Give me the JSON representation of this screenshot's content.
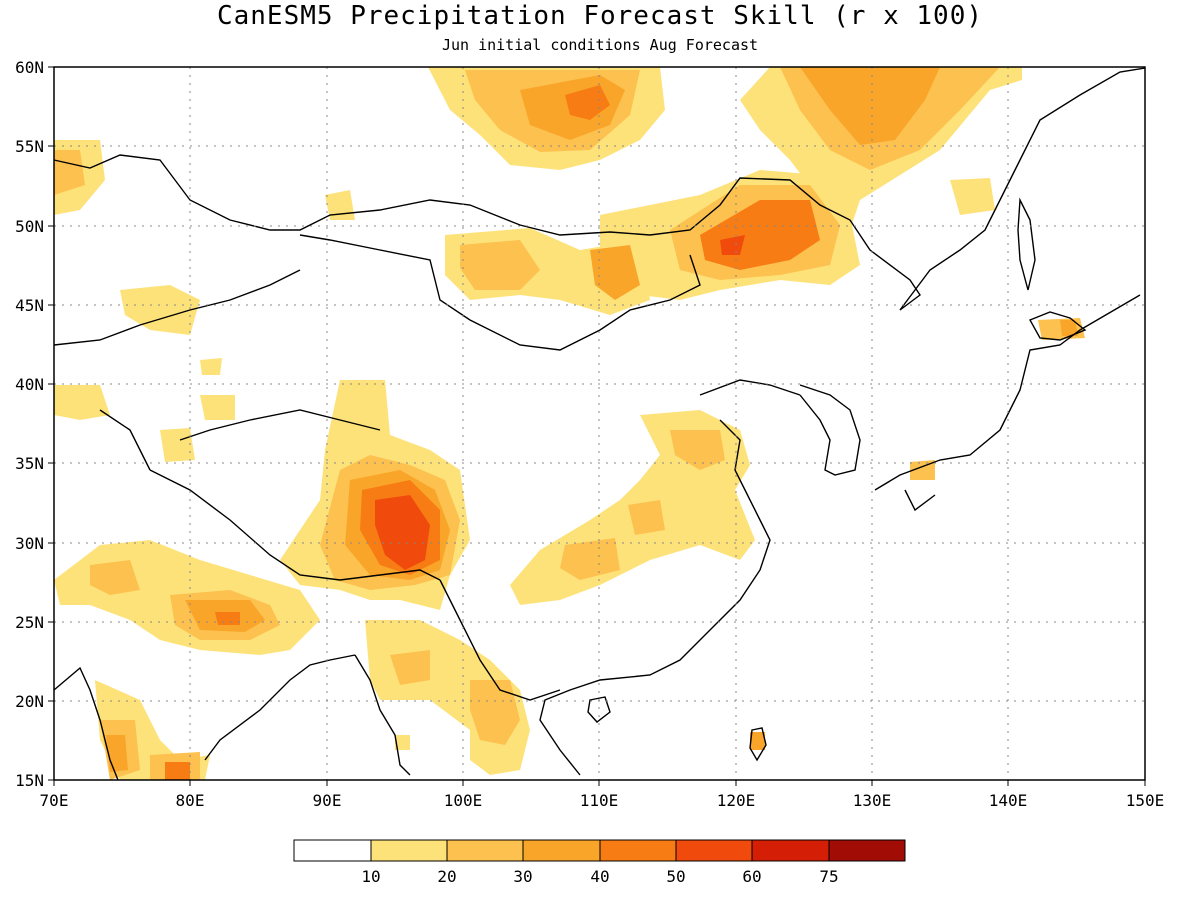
{
  "header": {
    "title": "CanESM5 Precipitation Forecast Skill (r x 100)",
    "subtitle": "Jun initial conditions  Aug Forecast"
  },
  "axes": {
    "lon_ticks": [
      "70E",
      "80E",
      "90E",
      "100E",
      "110E",
      "120E",
      "130E",
      "140E",
      "150E"
    ],
    "lat_ticks": [
      "60N",
      "55N",
      "50N",
      "45N",
      "40N",
      "35N",
      "30N",
      "25N",
      "20N",
      "15N"
    ]
  },
  "colorbar": {
    "labels": [
      "10",
      "20",
      "30",
      "40",
      "50",
      "60",
      "75"
    ],
    "colors": [
      "#ffffff",
      "#fde27a",
      "#fcc14e",
      "#f9a52a",
      "#f77c14",
      "#f04a0c",
      "#d41f06",
      "#a10c04"
    ]
  },
  "map": {
    "lon_range": [
      70,
      150
    ],
    "lat_range": [
      15,
      60
    ],
    "gridlines": "dotted"
  }
}
